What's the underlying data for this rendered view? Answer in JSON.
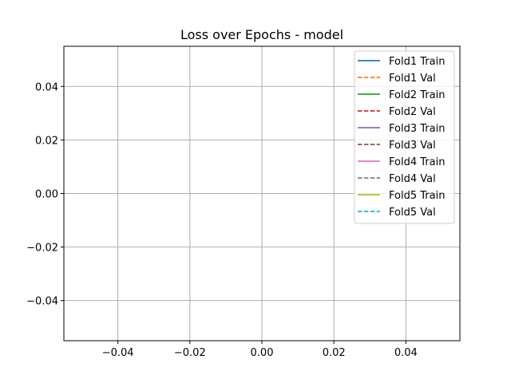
{
  "chart_data": {
    "type": "line",
    "title": "Loss over Epochs - model",
    "xlabel": "",
    "ylabel": "",
    "xlim": [
      -0.055,
      0.055
    ],
    "ylim": [
      -0.055,
      0.055
    ],
    "x_ticks": [
      -0.04,
      -0.02,
      0.0,
      0.02,
      0.04
    ],
    "x_tick_labels": [
      "−0.04",
      "−0.02",
      "0.00",
      "0.02",
      "0.04"
    ],
    "y_ticks": [
      0.04,
      0.02,
      0.0,
      -0.02,
      -0.04
    ],
    "y_tick_labels": [
      "0.04",
      "0.02",
      "0.00",
      "−0.02",
      "−0.04"
    ],
    "grid": true,
    "legend_position": "top-right",
    "series": [
      {
        "name": "Fold1 Train",
        "style": "solid",
        "color": "#1f77b4",
        "x": [],
        "y": []
      },
      {
        "name": "Fold1 Val",
        "style": "dashed",
        "color": "#ff7f0e",
        "x": [],
        "y": []
      },
      {
        "name": "Fold2 Train",
        "style": "solid",
        "color": "#2ca02c",
        "x": [],
        "y": []
      },
      {
        "name": "Fold2 Val",
        "style": "dashed",
        "color": "#d62728",
        "x": [],
        "y": []
      },
      {
        "name": "Fold3 Train",
        "style": "solid",
        "color": "#9467bd",
        "x": [],
        "y": []
      },
      {
        "name": "Fold3 Val",
        "style": "dashed",
        "color": "#8c564b",
        "x": [],
        "y": []
      },
      {
        "name": "Fold4 Train",
        "style": "solid",
        "color": "#e377c2",
        "x": [],
        "y": []
      },
      {
        "name": "Fold4 Val",
        "style": "dashed",
        "color": "#7f7f7f",
        "x": [],
        "y": []
      },
      {
        "name": "Fold5 Train",
        "style": "solid",
        "color": "#bcbd22",
        "x": [],
        "y": []
      },
      {
        "name": "Fold5 Val",
        "style": "dashed",
        "color": "#17becf",
        "x": [],
        "y": []
      }
    ]
  }
}
